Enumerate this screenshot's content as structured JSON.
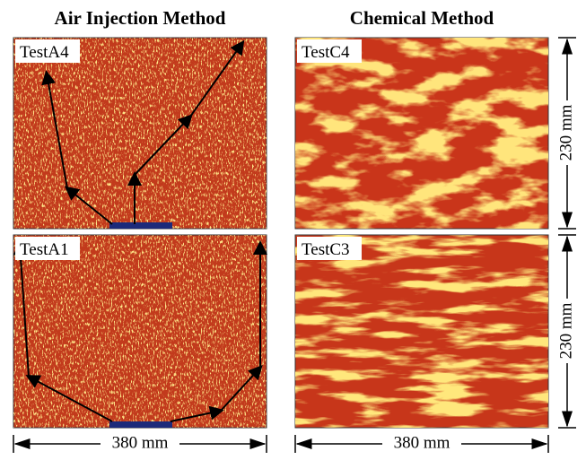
{
  "columns": [
    "Air Injection Method",
    "Chemical Method"
  ],
  "panels": [
    {
      "label": "TestA4"
    },
    {
      "label": "TestC4"
    },
    {
      "label": "TestA1"
    },
    {
      "label": "TestC3"
    }
  ],
  "height_labels": [
    "230 mm",
    "230 mm"
  ],
  "width_labels": [
    "380 mm",
    "380 mm"
  ]
}
